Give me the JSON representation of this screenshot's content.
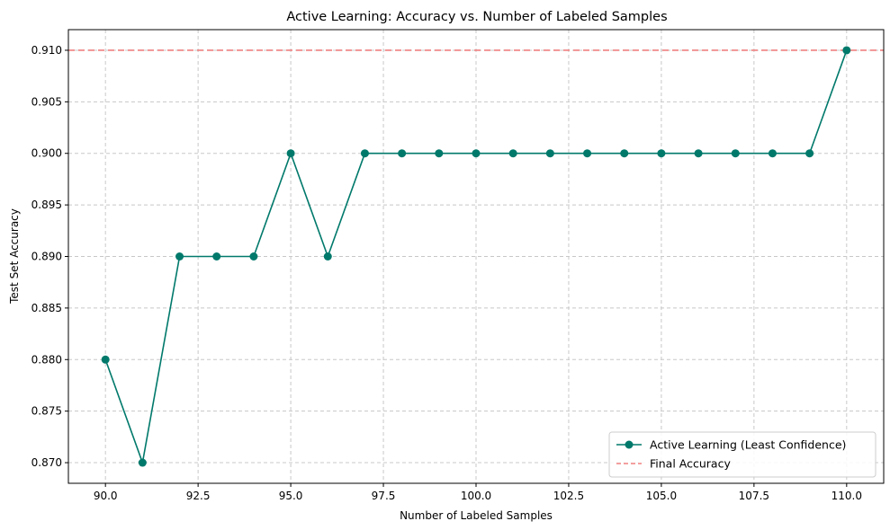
{
  "chart_data": {
    "type": "line",
    "title": "Active Learning: Accuracy vs. Number of Labeled Samples",
    "xlabel": "Number of Labeled Samples",
    "ylabel": "Test Set Accuracy",
    "xlim": [
      89.0,
      111.0
    ],
    "ylim": [
      0.868,
      0.912
    ],
    "x_ticks": [
      90.0,
      92.5,
      95.0,
      97.5,
      100.0,
      102.5,
      105.0,
      107.5,
      110.0
    ],
    "x_tick_labels": [
      "90.0",
      "92.5",
      "95.0",
      "97.5",
      "100.0",
      "102.5",
      "105.0",
      "107.5",
      "110.0"
    ],
    "y_ticks": [
      0.87,
      0.875,
      0.88,
      0.885,
      0.89,
      0.895,
      0.9,
      0.905,
      0.91
    ],
    "y_tick_labels": [
      "0.870",
      "0.875",
      "0.880",
      "0.885",
      "0.890",
      "0.895",
      "0.900",
      "0.905",
      "0.910"
    ],
    "grid": true,
    "legend_position": "lower right",
    "series": [
      {
        "name": "Active Learning (Least Confidence)",
        "color": "#00796b",
        "marker": "circle",
        "x": [
          90,
          91,
          92,
          93,
          94,
          95,
          96,
          97,
          98,
          99,
          100,
          101,
          102,
          103,
          104,
          105,
          106,
          107,
          108,
          109,
          110
        ],
        "y": [
          0.88,
          0.87,
          0.89,
          0.89,
          0.89,
          0.9,
          0.89,
          0.9,
          0.9,
          0.9,
          0.9,
          0.9,
          0.9,
          0.9,
          0.9,
          0.9,
          0.9,
          0.9,
          0.9,
          0.9,
          0.91
        ]
      }
    ],
    "reference_lines": [
      {
        "name": "Final Accuracy",
        "y": 0.91,
        "color": "#f08080",
        "style": "dashed"
      }
    ]
  }
}
